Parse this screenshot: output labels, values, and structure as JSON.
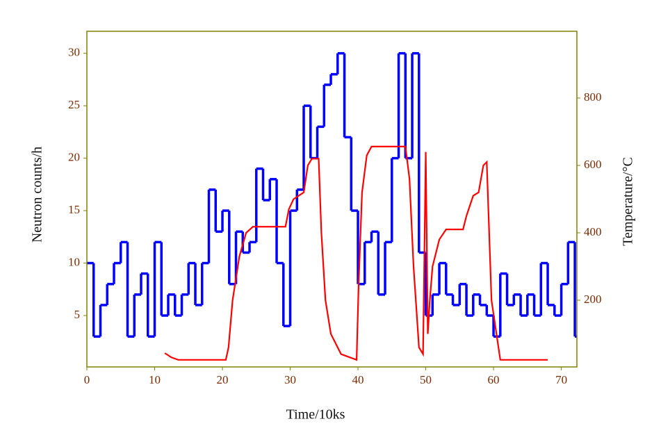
{
  "chart_data": {
    "type": "line",
    "x_label": "Time/10ks",
    "y_label": "Neutron counts/h",
    "y2_label": "Temperature/°C",
    "xlim": [
      0,
      72.3
    ],
    "xticks": [
      0,
      10,
      20,
      30,
      40,
      50,
      60,
      70
    ],
    "ylim": [
      0.1,
      32.1
    ],
    "yticks": [
      5,
      10,
      15,
      20,
      25,
      30
    ],
    "y2lim": [
      2,
      998
    ],
    "y2ticks": [
      200,
      400,
      600,
      800
    ],
    "frame_color": "#808000",
    "series": [
      {
        "color": "#0000ff",
        "step": "post",
        "x": [
          0,
          1,
          2,
          3,
          4,
          5,
          6,
          7,
          8,
          9,
          10,
          11,
          12,
          13,
          14,
          15,
          16,
          17,
          18,
          19,
          20,
          21,
          22,
          23,
          24,
          25,
          26,
          27,
          28,
          29,
          30,
          31,
          32,
          33,
          34,
          35,
          36,
          37,
          38,
          39,
          40,
          41,
          42,
          43,
          44,
          45,
          46,
          47,
          48,
          49,
          50,
          51,
          52,
          53,
          54,
          55,
          56,
          57,
          58,
          59,
          60,
          61,
          62,
          63,
          64,
          65,
          66,
          67,
          68,
          69,
          70,
          71,
          72
        ],
        "values": [
          10,
          3,
          6,
          8,
          10,
          12,
          3,
          7,
          9,
          3,
          12,
          5,
          7,
          5,
          7,
          10,
          6,
          10,
          17,
          13,
          15,
          8,
          13,
          11,
          12,
          19,
          16,
          18,
          10,
          4,
          15,
          17,
          25,
          20,
          23,
          27,
          28,
          30,
          22,
          15,
          8,
          12,
          13,
          7,
          12,
          20,
          30,
          20,
          30,
          11,
          5,
          7,
          10,
          7,
          6,
          8,
          5,
          7,
          6,
          5,
          3,
          9,
          6,
          7,
          5,
          7,
          5,
          10,
          6,
          5,
          8,
          12,
          3
        ]
      },
      {
        "color": "#ff0000",
        "axis": "y2",
        "x": [
          11.5,
          12.5,
          13.5,
          20.5,
          20.9,
          21.5,
          22.5,
          23.5,
          24.5,
          29.3,
          29.8,
          30.5,
          32,
          32.6,
          33.2,
          34.2,
          34.6,
          35.2,
          36,
          37.5,
          39.8,
          40.1,
          40.6,
          41.3,
          42,
          47,
          47.6,
          48.2,
          49,
          49.6,
          50,
          50.3,
          50.6,
          51,
          52,
          53,
          55.5,
          56,
          57,
          57.8,
          58.5,
          59,
          59.7,
          61,
          68
        ],
        "values": [
          43,
          30,
          23,
          23,
          60,
          200,
          330,
          400,
          418,
          418,
          470,
          500,
          520,
          600,
          620,
          620,
          400,
          200,
          100,
          40,
          23,
          250,
          520,
          630,
          656,
          656,
          560,
          300,
          60,
          40,
          640,
          100,
          200,
          300,
          380,
          410,
          410,
          450,
          510,
          520,
          600,
          610,
          200,
          23,
          23
        ]
      }
    ]
  }
}
